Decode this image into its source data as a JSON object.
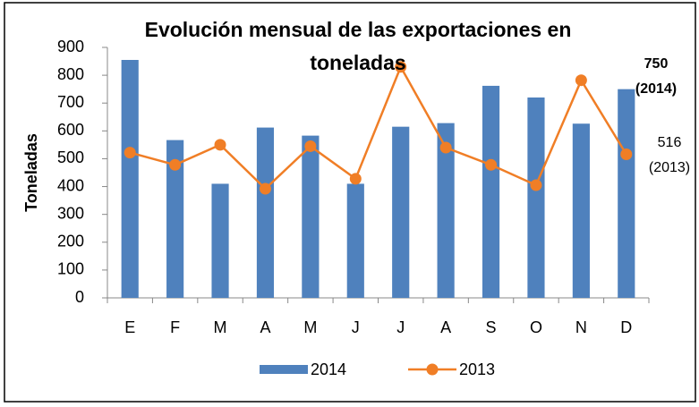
{
  "chart_data": {
    "type": "combo",
    "title": "Evolución mensual de las exportaciones en toneladas",
    "ylabel": "Toneladas",
    "categories": [
      "E",
      "F",
      "M",
      "A",
      "M",
      "J",
      "J",
      "A",
      "S",
      "O",
      "N",
      "D"
    ],
    "series": [
      {
        "name": "2014",
        "type": "bar",
        "color": "#4f81bd",
        "values": [
          855,
          567,
          410,
          612,
          583,
          410,
          615,
          628,
          762,
          720,
          626,
          750
        ]
      },
      {
        "name": "2013",
        "type": "line",
        "color": "#f07e26",
        "values": [
          522,
          478,
          550,
          392,
          545,
          428,
          830,
          540,
          478,
          405,
          782,
          516
        ]
      }
    ],
    "ylim": [
      0,
      900
    ],
    "yticks": [
      0,
      100,
      200,
      300,
      400,
      500,
      600,
      700,
      800,
      900
    ],
    "grid": false,
    "legend": "bottom",
    "annotations": [
      {
        "lines": [
          "750",
          "(2014)"
        ],
        "bold": true
      },
      {
        "lines": [
          "516",
          "(2013)"
        ],
        "bold": false
      }
    ]
  }
}
